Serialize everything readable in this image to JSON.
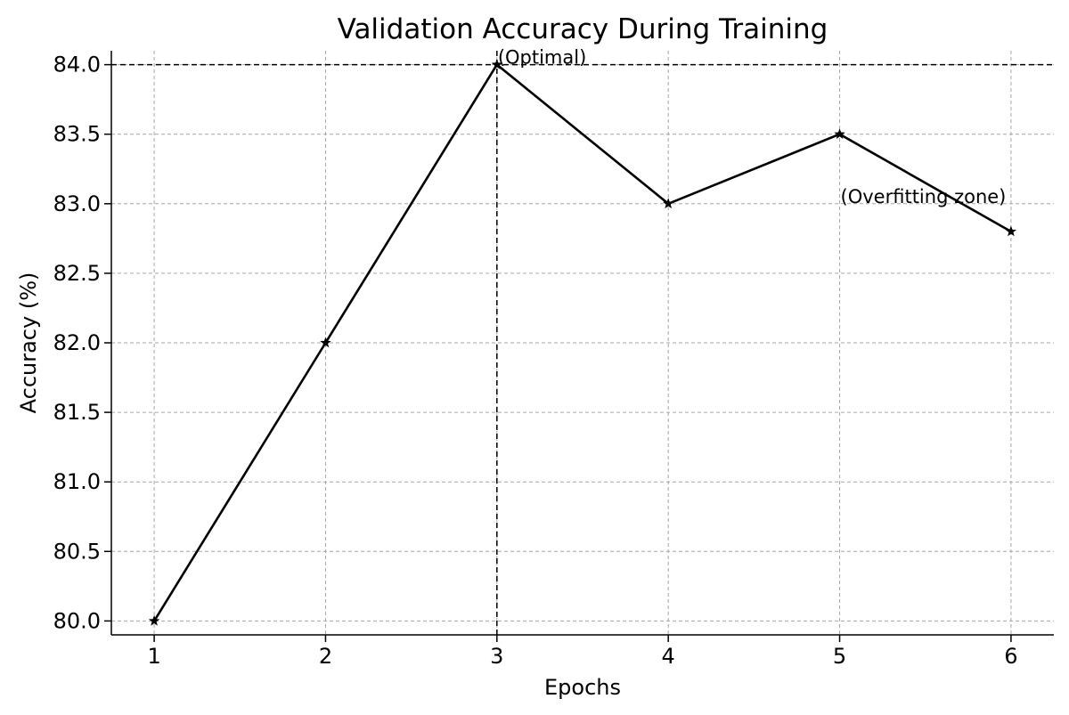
{
  "chart_data": {
    "type": "line",
    "title": "Validation Accuracy During Training",
    "xlabel": "Epochs",
    "ylabel": "Accuracy (%)",
    "x": [
      1,
      2,
      3,
      4,
      5,
      6
    ],
    "xticks": [
      "1",
      "2",
      "3",
      "4",
      "5",
      "6"
    ],
    "xlim": [
      0.75,
      6.25
    ],
    "yticks": [
      "80.0",
      "80.5",
      "81.0",
      "81.5",
      "82.0",
      "82.5",
      "83.0",
      "83.5",
      "84.0"
    ],
    "ylim": [
      79.9,
      84.1
    ],
    "grid": true,
    "series": [
      {
        "values": [
          80.0,
          82.0,
          84.0,
          83.0,
          83.5,
          82.8
        ],
        "color": "#000000",
        "marker": "star"
      }
    ],
    "reference_lines": {
      "horizontal_y": 84.0,
      "vertical_x": 3
    },
    "annotations": [
      {
        "text": "(Optimal)",
        "x": 3,
        "y": 84.0
      },
      {
        "text": "(Overfitting zone)",
        "x": 5,
        "y": 83.0
      }
    ]
  }
}
